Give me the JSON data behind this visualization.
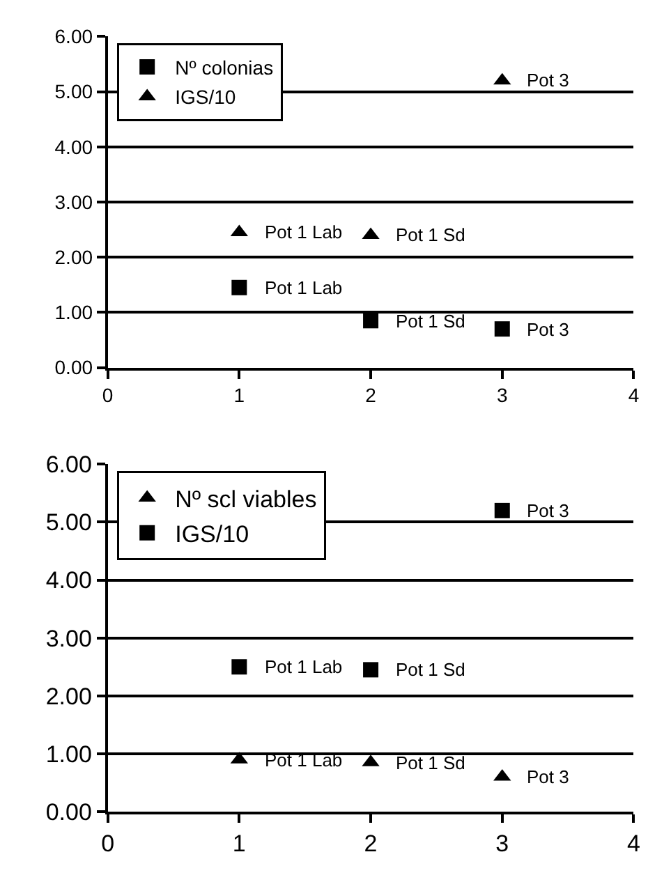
{
  "chart_data": [
    {
      "type": "scatter",
      "x": [
        1,
        2,
        3
      ],
      "xlim": [
        0,
        4
      ],
      "xticks": [
        0,
        1,
        2,
        3,
        4
      ],
      "ylim": [
        0,
        6
      ],
      "yticks": [
        {
          "value": 0,
          "label": "0.00"
        },
        {
          "value": 1,
          "label": "1.00"
        },
        {
          "value": 2,
          "label": "2.00"
        },
        {
          "value": 3,
          "label": "3.00"
        },
        {
          "value": 4,
          "label": "4.00"
        },
        {
          "value": 5,
          "label": "5.00"
        },
        {
          "value": 6,
          "label": "6.00"
        }
      ],
      "grid": "y",
      "legend": "top left",
      "series": [
        {
          "name": "Nº colonias",
          "color": "#000000",
          "marker": "square",
          "values": [
            1.45,
            0.85,
            0.7
          ]
        },
        {
          "name": "IGS/10",
          "color": "#000000",
          "marker": "triangle",
          "values": [
            2.45,
            2.4,
            5.2
          ]
        }
      ],
      "annotations": [
        {
          "text": "Pot 1 Lab",
          "x": 1,
          "y": 1.45
        },
        {
          "text": "Pot 1 Sd",
          "x": 2,
          "y": 0.85
        },
        {
          "text": "Pot 3",
          "x": 3,
          "y": 0.7
        },
        {
          "text": "Pot 1 Lab",
          "x": 1,
          "y": 2.45
        },
        {
          "text": "Pot 1 Sd",
          "x": 2,
          "y": 2.4
        },
        {
          "text": "Pot 3",
          "x": 3,
          "y": 5.2
        }
      ]
    },
    {
      "type": "scatter",
      "x": [
        1,
        2,
        3
      ],
      "xlim": [
        0,
        4
      ],
      "xticks": [
        0,
        1,
        2,
        3,
        4
      ],
      "ylim": [
        0,
        6
      ],
      "yticks": [
        {
          "value": 0,
          "label": "0.00"
        },
        {
          "value": 1,
          "label": "1.00"
        },
        {
          "value": 2,
          "label": "2.00"
        },
        {
          "value": 3,
          "label": "3.00"
        },
        {
          "value": 4,
          "label": "4.00"
        },
        {
          "value": 5,
          "label": "5.00"
        },
        {
          "value": 6,
          "label": "6.00"
        }
      ],
      "grid": "y",
      "legend": "top left",
      "series": [
        {
          "name": "Nº scl viables",
          "color": "#000000",
          "marker": "triangle",
          "values": [
            0.9,
            0.85,
            0.6
          ]
        },
        {
          "name": "IGS/10",
          "color": "#000000",
          "marker": "square",
          "values": [
            2.5,
            2.45,
            5.2
          ]
        }
      ],
      "annotations": [
        {
          "text": "Pot 1 Lab",
          "x": 1,
          "y": 0.9
        },
        {
          "text": "Pot 1 Sd",
          "x": 2,
          "y": 0.85
        },
        {
          "text": "Pot 3",
          "x": 3,
          "y": 0.6
        },
        {
          "text": "Pot 1 Lab",
          "x": 1,
          "y": 2.5
        },
        {
          "text": "Pot 1 Sd",
          "x": 2,
          "y": 2.45
        },
        {
          "text": "Pot 3",
          "x": 3,
          "y": 5.2
        }
      ]
    }
  ]
}
